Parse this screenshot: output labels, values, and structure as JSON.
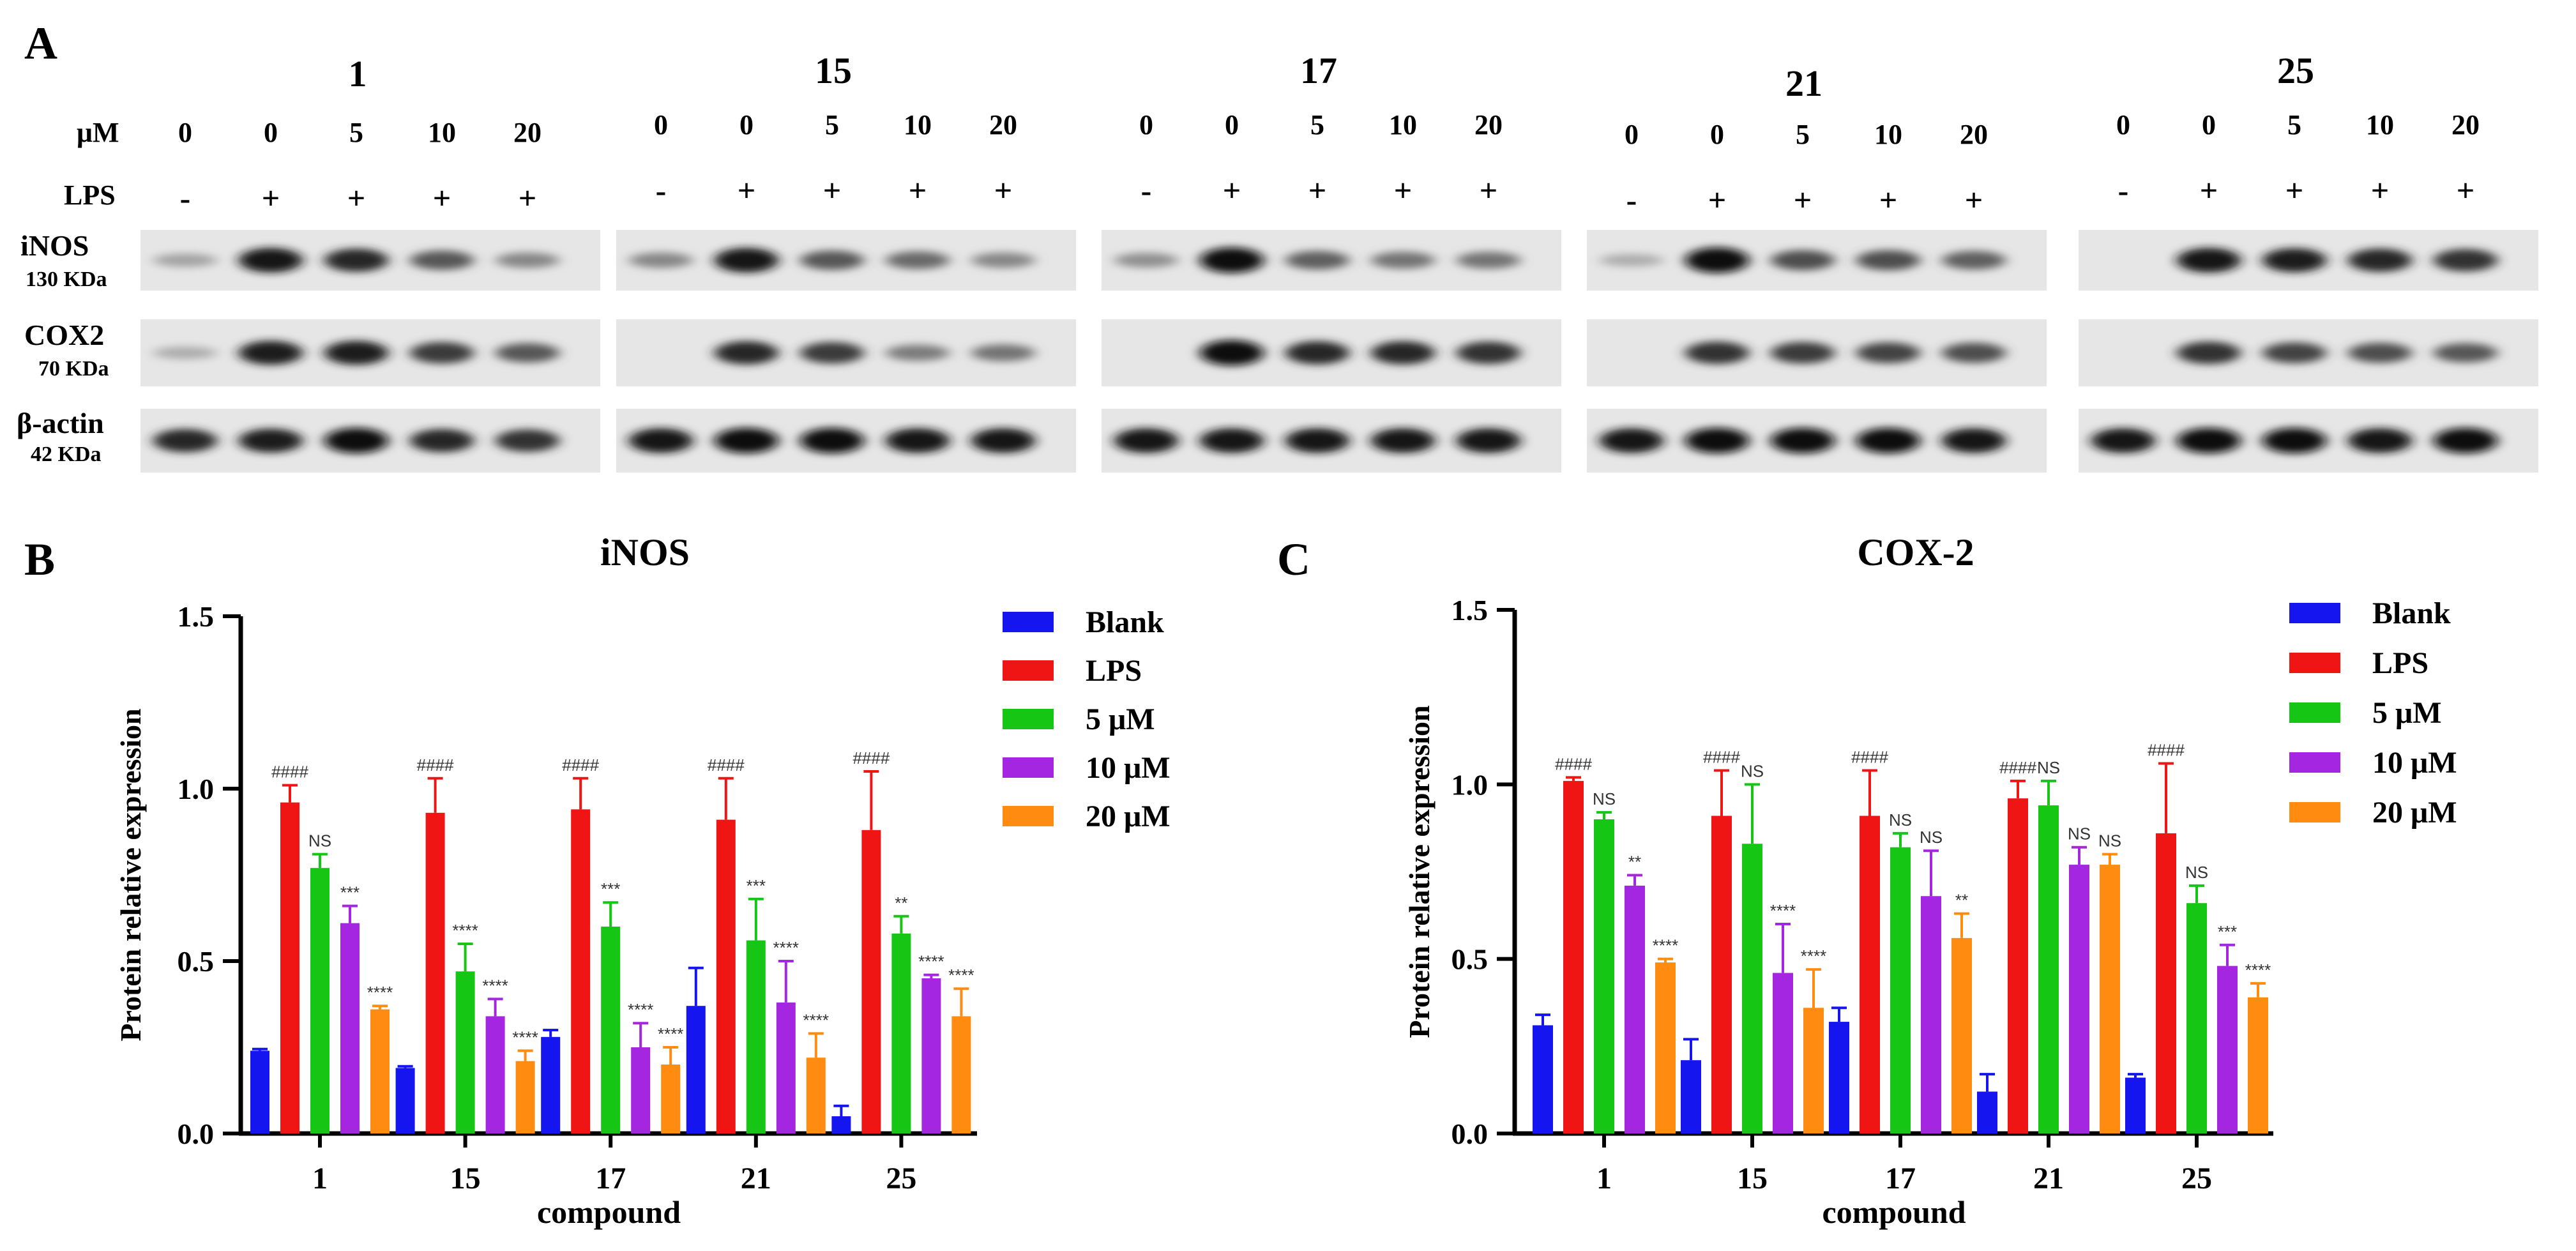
{
  "panel_labels": {
    "a": "A",
    "b": "B",
    "c": "C"
  },
  "blots": {
    "row_labels": {
      "um": "μM",
      "lps": "LPS"
    },
    "proteins": [
      {
        "name": "iNOS",
        "kda": "130 KDa"
      },
      {
        "name": "COX2",
        "kda": "70 KDa"
      },
      {
        "name": "β-actin",
        "kda": "42 KDa"
      }
    ],
    "dose_labels": [
      "0",
      "0",
      "5",
      "10",
      "20"
    ],
    "lps_labels": [
      "-",
      "+",
      "+",
      "+",
      "+"
    ],
    "groups": [
      {
        "compound": "1",
        "inos": [
          0.2,
          0.95,
          0.85,
          0.6,
          0.35
        ],
        "cox2": [
          0.15,
          0.9,
          0.9,
          0.75,
          0.6
        ],
        "actin": [
          0.85,
          0.9,
          1.0,
          0.85,
          0.8
        ]
      },
      {
        "compound": "15",
        "inos": [
          0.35,
          0.95,
          0.6,
          0.5,
          0.35
        ],
        "cox2": [
          0.0,
          0.85,
          0.75,
          0.4,
          0.45
        ],
        "actin": [
          0.95,
          1.0,
          1.0,
          0.95,
          0.95
        ]
      },
      {
        "compound": "17",
        "inos": [
          0.3,
          1.0,
          0.55,
          0.45,
          0.45
        ],
        "cox2": [
          0.0,
          1.0,
          0.85,
          0.85,
          0.8
        ],
        "actin": [
          0.95,
          0.95,
          0.95,
          0.95,
          0.95
        ]
      },
      {
        "compound": "21",
        "inos": [
          0.15,
          1.0,
          0.65,
          0.65,
          0.55
        ],
        "cox2": [
          0.0,
          0.8,
          0.75,
          0.7,
          0.65
        ],
        "actin": [
          0.95,
          1.0,
          1.0,
          1.0,
          0.95
        ]
      },
      {
        "compound": "25",
        "inos": [
          0.0,
          0.95,
          0.9,
          0.85,
          0.8
        ],
        "cox2": [
          0.0,
          0.8,
          0.7,
          0.65,
          0.6
        ],
        "actin": [
          0.95,
          1.0,
          1.0,
          0.95,
          1.0
        ]
      }
    ]
  },
  "chart_data": [
    {
      "type": "bar",
      "title": "iNOS",
      "xlabel": "compound",
      "ylabel": "Protein relative expression",
      "ylim": [
        0,
        1.5
      ],
      "yticks": [
        "0.0",
        "0.5",
        "1.0",
        "1.5"
      ],
      "categories": [
        "1",
        "15",
        "17",
        "21",
        "25"
      ],
      "legend_position": "top-right",
      "series": [
        {
          "name": "Blank",
          "color": "#1515f0",
          "values": [
            0.24,
            0.19,
            0.28,
            0.37,
            0.05
          ],
          "errors": [
            0.005,
            0.005,
            0.02,
            0.11,
            0.03
          ],
          "labels": [
            "",
            "",
            "",
            "",
            ""
          ]
        },
        {
          "name": "LPS",
          "color": "#f01515",
          "values": [
            0.96,
            0.93,
            0.94,
            0.91,
            0.88
          ],
          "errors": [
            0.05,
            0.1,
            0.09,
            0.12,
            0.17
          ],
          "labels": [
            "####",
            "####",
            "####",
            "####",
            "####"
          ]
        },
        {
          "name": "5 μM",
          "color": "#15c615",
          "values": [
            0.77,
            0.47,
            0.6,
            0.56,
            0.58
          ],
          "errors": [
            0.04,
            0.08,
            0.07,
            0.12,
            0.05
          ],
          "labels": [
            "NS",
            "****",
            "***",
            "***",
            "**"
          ]
        },
        {
          "name": "10 μM",
          "color": "#a526e0",
          "values": [
            0.61,
            0.34,
            0.25,
            0.38,
            0.45
          ],
          "errors": [
            0.05,
            0.05,
            0.07,
            0.12,
            0.01
          ],
          "labels": [
            "***",
            "****",
            "****",
            "****",
            "****"
          ]
        },
        {
          "name": "20 μM",
          "color": "#ff8c10",
          "values": [
            0.36,
            0.21,
            0.2,
            0.22,
            0.34
          ],
          "errors": [
            0.01,
            0.03,
            0.05,
            0.07,
            0.08
          ],
          "labels": [
            "****",
            "****",
            "****",
            "****",
            "****"
          ]
        }
      ]
    },
    {
      "type": "bar",
      "title": "COX-2",
      "xlabel": "compound",
      "ylabel": "Protein relative expression",
      "ylim": [
        0,
        1.5
      ],
      "yticks": [
        "0.0",
        "0.5",
        "1.0",
        "1.5"
      ],
      "categories": [
        "1",
        "15",
        "17",
        "21",
        "25"
      ],
      "legend_position": "top-right",
      "series": [
        {
          "name": "Blank",
          "color": "#1515f0",
          "values": [
            0.31,
            0.21,
            0.32,
            0.12,
            0.16
          ],
          "errors": [
            0.03,
            0.06,
            0.04,
            0.05,
            0.01
          ],
          "labels": [
            "",
            "",
            "",
            "",
            ""
          ]
        },
        {
          "name": "LPS",
          "color": "#f01515",
          "values": [
            1.01,
            0.91,
            0.91,
            0.96,
            0.86
          ],
          "errors": [
            0.01,
            0.13,
            0.13,
            0.05,
            0.2
          ],
          "labels": [
            "####",
            "####",
            "####",
            "####",
            "####"
          ]
        },
        {
          "name": "5 μM",
          "color": "#15c615",
          "values": [
            0.9,
            0.83,
            0.82,
            0.94,
            0.66
          ],
          "errors": [
            0.02,
            0.17,
            0.04,
            0.07,
            0.05
          ],
          "labels": [
            "NS",
            "NS",
            "NS",
            "NS",
            "NS"
          ]
        },
        {
          "name": "10 μM",
          "color": "#a526e0",
          "values": [
            0.71,
            0.46,
            0.68,
            0.77,
            0.48
          ],
          "errors": [
            0.03,
            0.14,
            0.13,
            0.05,
            0.06
          ],
          "labels": [
            "**",
            "****",
            "NS",
            "NS",
            "***"
          ]
        },
        {
          "name": "20 μM",
          "color": "#ff8c10",
          "values": [
            0.49,
            0.36,
            0.56,
            0.77,
            0.39
          ],
          "errors": [
            0.01,
            0.11,
            0.07,
            0.03,
            0.04
          ],
          "labels": [
            "****",
            "****",
            "**",
            "NS",
            "****"
          ]
        }
      ]
    }
  ]
}
